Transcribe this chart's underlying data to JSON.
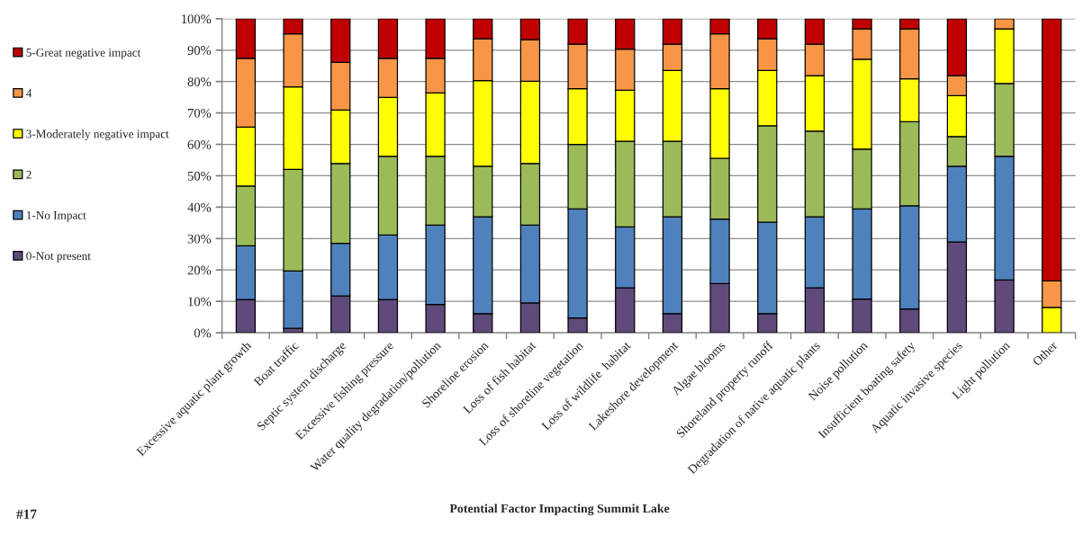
{
  "chart_data": {
    "type": "bar",
    "stacked": true,
    "categories": [
      "Excessive aquatic plant growth",
      "Boat traffic",
      "Septic system discharge",
      "Excessive fishing pressure",
      "Water quality degradation/pollution",
      "Shoreline erosion",
      "Loss of fish habitat",
      "Loss of shoreline vegetation",
      "Loss of wildlife  habitat",
      "Lakeshore development",
      "Algae blooms",
      "Shoreland property runoff",
      "Degradation of native aquatic plants",
      "Noise pollution",
      "Insufficient boating safety",
      "Aquatic invasive species",
      "Light pollution",
      "Other"
    ],
    "series": [
      {
        "name": "0-Not present",
        "color": "#604a7b",
        "values": [
          10.6,
          1.4,
          11.7,
          10.6,
          9.0,
          6.1,
          9.5,
          4.7,
          14.3,
          6.1,
          15.7,
          6.1,
          14.3,
          10.7,
          7.6,
          28.9,
          16.8,
          0
        ]
      },
      {
        "name": "1-No Impact",
        "color": "#4f81bd",
        "values": [
          17.1,
          18.3,
          16.8,
          20.5,
          25.3,
          30.8,
          24.8,
          34.7,
          19.4,
          30.8,
          20.5,
          29.1,
          22.6,
          28.7,
          32.8,
          24.1,
          39.4,
          0
        ]
      },
      {
        "name": "2",
        "color": "#9bbb59",
        "values": [
          19.0,
          32.3,
          25.4,
          25.1,
          21.9,
          16.1,
          19.6,
          20.6,
          27.3,
          24.1,
          19.3,
          30.7,
          27.3,
          19.1,
          26.8,
          9.5,
          23.2,
          0
        ]
      },
      {
        "name": "3-Moderately negative impact",
        "color": "#ffff00",
        "values": [
          18.8,
          26.3,
          17.0,
          18.7,
          20.2,
          27.3,
          26.2,
          17.7,
          16.2,
          22.5,
          22.2,
          17.6,
          17.7,
          28.6,
          13.7,
          13.0,
          17.4,
          8.1
        ]
      },
      {
        "name": "4",
        "color": "#f79646",
        "values": [
          21.9,
          16.9,
          15.2,
          12.5,
          11.0,
          13.3,
          13.2,
          14.2,
          13.1,
          8.4,
          17.5,
          10.1,
          10.0,
          9.7,
          15.9,
          6.4,
          3.2,
          8.4
        ]
      },
      {
        "name": "5-Great negative impact",
        "color": "#c00000",
        "values": [
          12.6,
          4.8,
          13.9,
          12.6,
          12.6,
          6.4,
          6.7,
          8.1,
          9.7,
          8.1,
          4.8,
          6.4,
          8.1,
          3.2,
          3.2,
          18.1,
          0,
          83.5
        ]
      }
    ],
    "xlabel": "Potential Factor Impacting Summit Lake",
    "ylim": [
      0,
      100
    ],
    "yticks": [
      {
        "value": 0,
        "label": "0%"
      },
      {
        "value": 10,
        "label": "10%"
      },
      {
        "value": 20,
        "label": "20%"
      },
      {
        "value": 30,
        "label": "30%"
      },
      {
        "value": 40,
        "label": "40%"
      },
      {
        "value": 50,
        "label": "50%"
      },
      {
        "value": 60,
        "label": "60%"
      },
      {
        "value": 70,
        "label": "70%"
      },
      {
        "value": 80,
        "label": "80%"
      },
      {
        "value": 90,
        "label": "90%"
      },
      {
        "value": 100,
        "label": "100%"
      }
    ],
    "grid": "y",
    "legend": "left",
    "annotations": [
      "#17"
    ]
  }
}
